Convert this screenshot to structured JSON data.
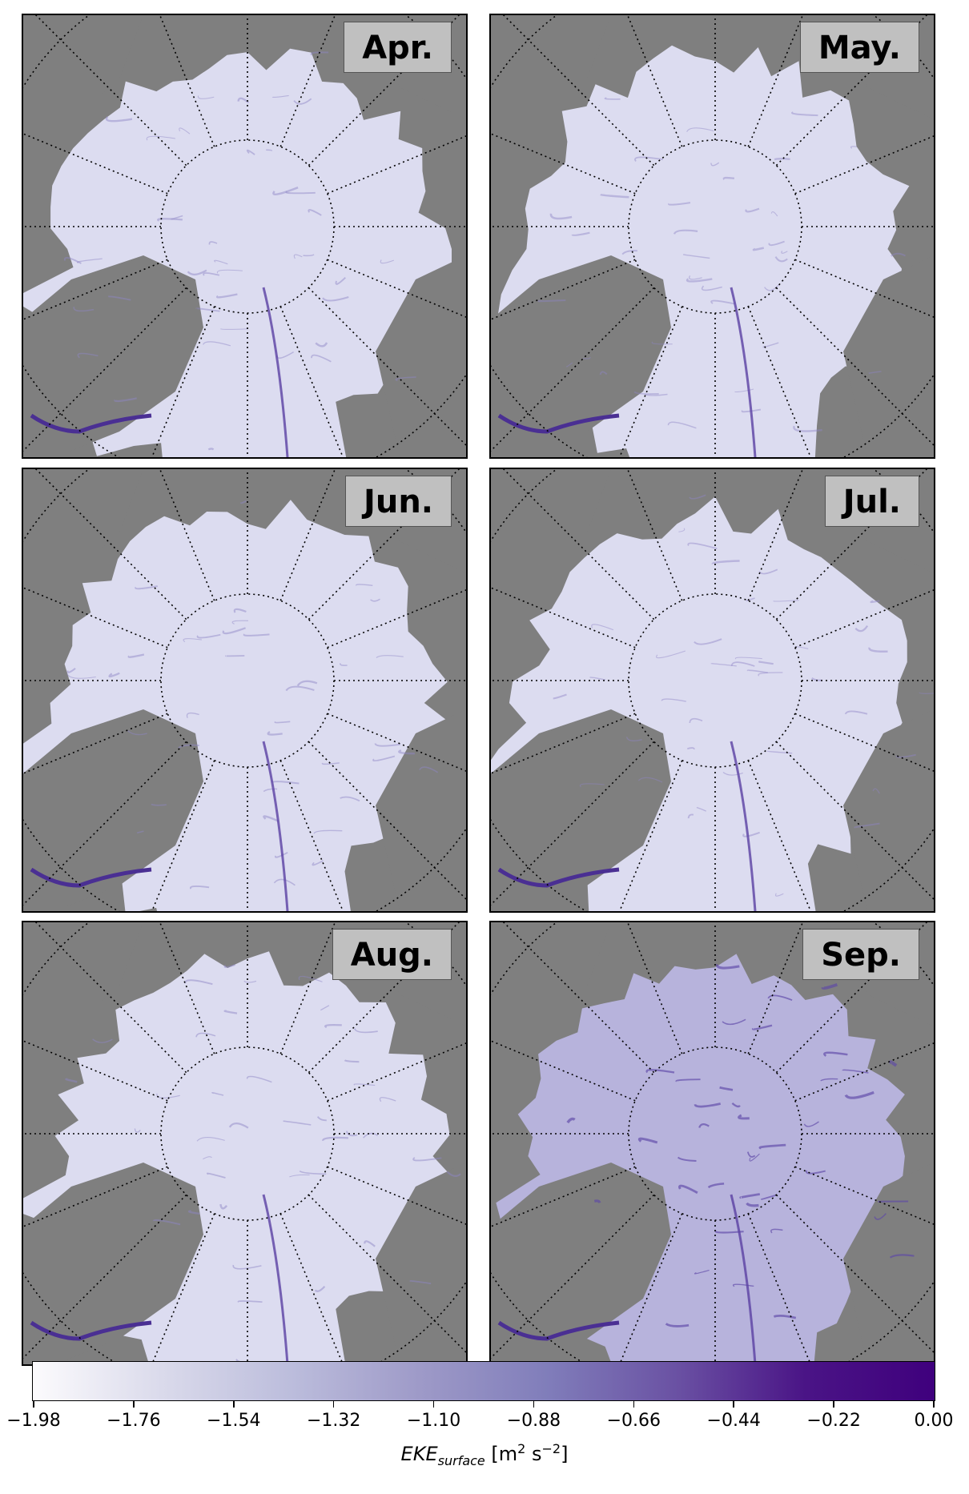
{
  "panels": [
    {
      "label": "Apr.",
      "intensity": 0.35
    },
    {
      "label": "May.",
      "intensity": 0.3
    },
    {
      "label": "Jun.",
      "intensity": 0.35
    },
    {
      "label": "Jul.",
      "intensity": 0.32
    },
    {
      "label": "Aug.",
      "intensity": 0.38
    },
    {
      "label": "Sep.",
      "intensity": 0.7
    }
  ],
  "colorbar": {
    "ticks": [
      "−1.98",
      "−1.76",
      "−1.54",
      "−1.32",
      "−1.10",
      "−0.88",
      "−0.66",
      "−0.44",
      "−0.22",
      "0.00"
    ],
    "label_main": "EKE",
    "label_sub": "surface",
    "label_units_pre": " [m",
    "label_units_sup1": "2",
    "label_units_mid": " s",
    "label_units_sup2": "−2",
    "label_units_post": "]",
    "range": [
      -1.98,
      0.0
    ],
    "colors": [
      "#fcfbfd",
      "#dadaeb",
      "#bcbddc",
      "#9e9ac8",
      "#807dba",
      "#6a51a3",
      "#4a1486",
      "#3f007d"
    ]
  },
  "map_colors": {
    "land": "#7f7f7f",
    "ice_light": "#e6e6f5",
    "ice_dark": "#5a3fa0"
  }
}
